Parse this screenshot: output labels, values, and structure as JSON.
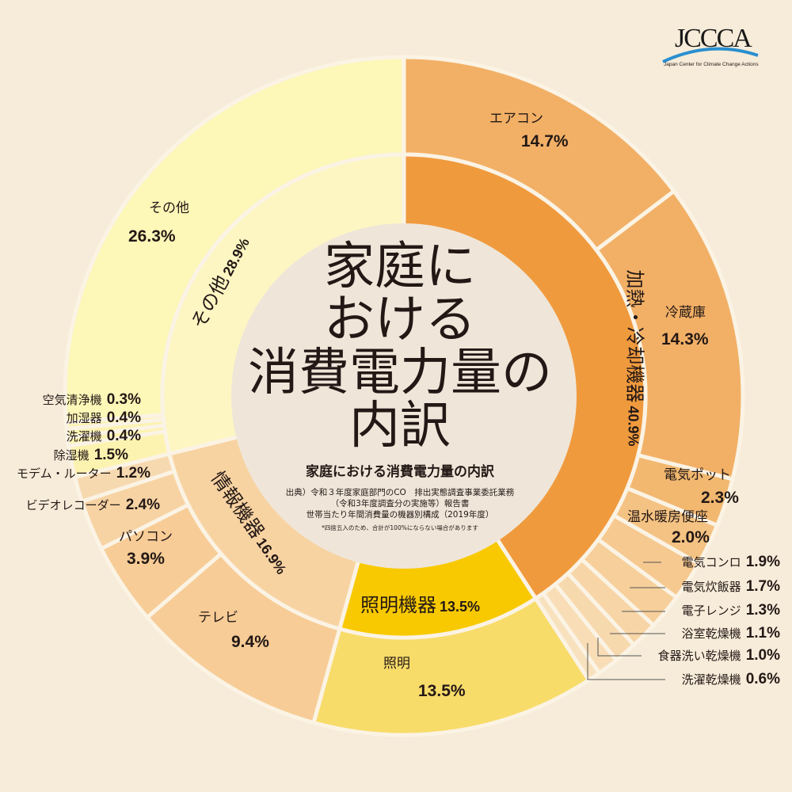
{
  "logo": {
    "text": "JCCCA",
    "subtitle": "Japan Center for Climate Change Actions"
  },
  "center": {
    "title_lines": [
      "家庭に",
      "おける",
      "消費電力量の",
      "内訳"
    ],
    "subtitle": "家庭における消費電力量の内訳",
    "source_lines": [
      "出典）令和３年度家庭部門のCO　排出実態調査事業委託業務",
      "（令和3年度調査分の実施等）報告書",
      "世帯当たり年間消費量の機器別構成（2019年度）"
    ],
    "note": "*四捨五入のため、合計が100%にならない場合があります"
  },
  "chart_data": {
    "type": "pie",
    "title": "家庭における消費電力量の内訳",
    "start": "top",
    "direction": "clockwise",
    "inner": [
      {
        "name": "加熱・冷却機器",
        "value": 40.9,
        "pct": "40.9%",
        "color": "#f09a3e"
      },
      {
        "name": "照明機器",
        "value": 13.5,
        "pct": "13.5%",
        "color": "#f8c900"
      },
      {
        "name": "情報機器",
        "value": 16.9,
        "pct": "16.9%",
        "color": "#f8d3a2"
      },
      {
        "name": "その他",
        "value": 28.9,
        "pct": "28.9%",
        "color": "#fdf6c3"
      }
    ],
    "outer": [
      {
        "name": "エアコン",
        "value": 14.7,
        "pct": "14.7%",
        "color": "#f2b066"
      },
      {
        "name": "冷蔵庫",
        "value": 14.3,
        "pct": "14.3%",
        "color": "#f2b066"
      },
      {
        "name": "電気ポット",
        "value": 2.3,
        "pct": "2.3%",
        "color": "#f2b870"
      },
      {
        "name": "温水暖房便座",
        "value": 2.0,
        "pct": "2.0%",
        "color": "#f4c282"
      },
      {
        "name": "電気コンロ",
        "value": 1.9,
        "pct": "1.9%",
        "color": "#f5c990"
      },
      {
        "name": "電気炊飯器",
        "value": 1.7,
        "pct": "1.7%",
        "color": "#f6cf9a"
      },
      {
        "name": "電子レンジ",
        "value": 1.3,
        "pct": "1.3%",
        "color": "#f7d5a6"
      },
      {
        "name": "浴室乾燥機",
        "value": 1.1,
        "pct": "1.1%",
        "color": "#f7d9ae"
      },
      {
        "name": "食器洗い乾燥機",
        "value": 1.0,
        "pct": "1.0%",
        "color": "#f8ddb6"
      },
      {
        "name": "洗濯乾燥機",
        "value": 0.6,
        "pct": "0.6%",
        "color": "#f8e1bd"
      },
      {
        "name": "照明",
        "value": 13.5,
        "pct": "13.5%",
        "color": "#f8dc6a"
      },
      {
        "name": "テレビ",
        "value": 9.4,
        "pct": "9.4%",
        "color": "#f7cc96"
      },
      {
        "name": "パソコン",
        "value": 3.9,
        "pct": "3.9%",
        "color": "#f7cc96"
      },
      {
        "name": "ビデオレコーダー",
        "value": 2.4,
        "pct": "2.4%",
        "color": "#f7d3a4"
      },
      {
        "name": "モデム・ルーター",
        "value": 1.2,
        "pct": "1.2%",
        "color": "#f7d9b0"
      },
      {
        "name": "除湿機",
        "value": 1.5,
        "pct": "1.5%",
        "color": "#fdf3b0"
      },
      {
        "name": "洗濯機",
        "value": 0.4,
        "pct": "0.4%",
        "color": "#fdf3b0"
      },
      {
        "name": "加湿器",
        "value": 0.4,
        "pct": "0.4%",
        "color": "#fdf3b0"
      },
      {
        "name": "空気清浄機",
        "value": 0.3,
        "pct": "0.3%",
        "color": "#fdf3b0"
      },
      {
        "name": "その他",
        "value": 26.3,
        "pct": "26.3%",
        "color": "#fdf7b8"
      }
    ],
    "background": "#f7ecd9",
    "center_color": "#efe6d9"
  }
}
